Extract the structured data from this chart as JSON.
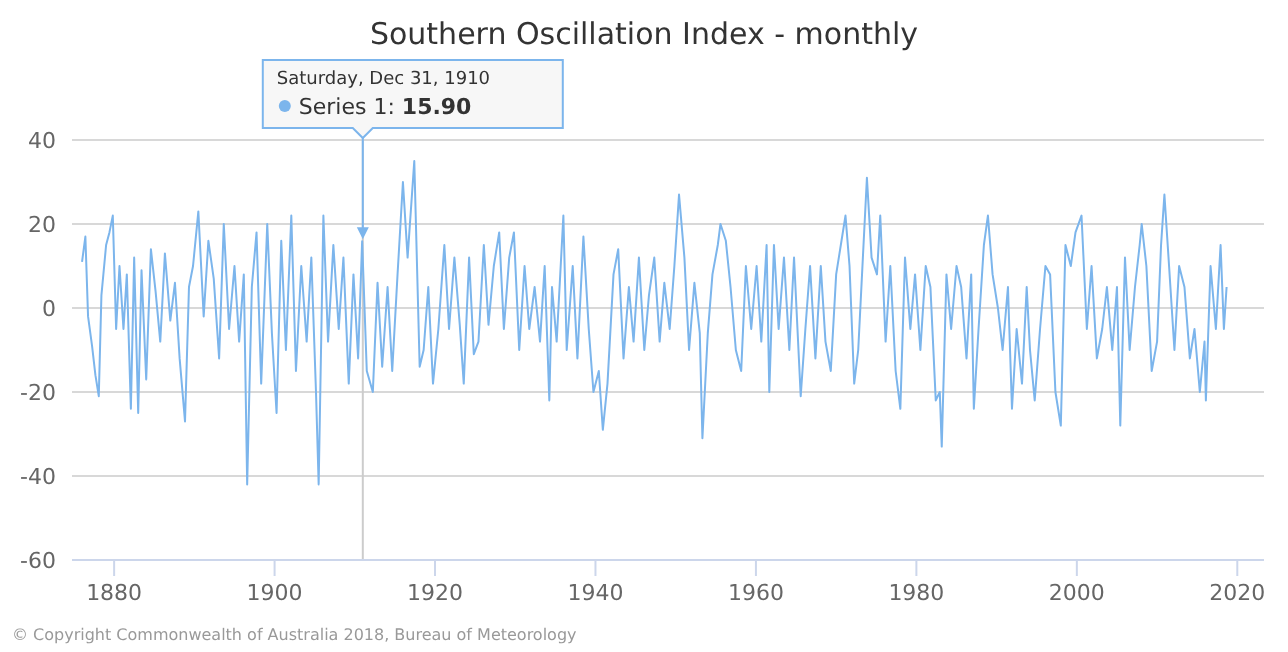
{
  "chart_data": {
    "type": "line",
    "title": "Southern Oscillation Index - monthly",
    "xlim": [
      "1874-10",
      "2023-05"
    ],
    "xticks": [
      {
        "value": "1880",
        "label": "1880"
      },
      {
        "value": "1900",
        "label": "1900"
      },
      {
        "value": "1920",
        "label": "1920"
      },
      {
        "value": "1940",
        "label": "1940"
      },
      {
        "value": "1960",
        "label": "1960"
      },
      {
        "value": "1980",
        "label": "1980"
      },
      {
        "value": "2000",
        "label": "2000"
      },
      {
        "value": "2020",
        "label": "2020"
      }
    ],
    "ylim": [
      -60,
      40
    ],
    "yticks": [
      -60,
      -40,
      -20,
      0,
      20,
      40
    ],
    "grid": "y",
    "marker": "none",
    "line_style": "solid",
    "x": [
      "1876-01",
      "1876-06",
      "1876-10",
      "1877-04",
      "1877-09",
      "1878-02",
      "1878-06",
      "1879-01",
      "1879-06",
      "1879-11",
      "1880-04",
      "1880-09",
      "1881-03",
      "1881-08",
      "1882-02",
      "1882-07",
      "1883-01",
      "1883-06",
      "1884-01",
      "1884-08",
      "1885-03",
      "1885-10",
      "1886-05",
      "1887-01",
      "1887-08",
      "1888-03",
      "1888-11",
      "1889-05",
      "1889-11",
      "1890-07",
      "1891-03",
      "1891-10",
      "1892-06",
      "1893-02",
      "1893-09",
      "1894-05",
      "1895-01",
      "1895-08",
      "1896-03",
      "1896-08",
      "1897-03",
      "1897-10",
      "1898-05",
      "1899-02",
      "1899-09",
      "1900-04",
      "1900-11",
      "1901-06",
      "1902-02",
      "1902-09",
      "1903-05",
      "1904-01",
      "1904-08",
      "1905-03",
      "1905-07",
      "1906-02",
      "1906-09",
      "1907-05",
      "1908-01",
      "1908-08",
      "1909-04",
      "1909-11",
      "1910-06",
      "1910-12",
      "1911-07",
      "1912-04",
      "1912-11",
      "1913-06",
      "1914-02",
      "1914-09",
      "1915-05",
      "1916-01",
      "1916-08",
      "1917-06",
      "1918-02",
      "1918-08",
      "1919-03",
      "1919-10",
      "1920-06",
      "1921-03",
      "1921-10",
      "1922-06",
      "1923-02",
      "1923-08",
      "1924-04",
      "1924-11",
      "1925-06",
      "1926-02",
      "1926-09",
      "1927-05",
      "1928-01",
      "1928-08",
      "1929-04",
      "1929-11",
      "1930-07",
      "1931-03",
      "1931-10",
      "1932-06",
      "1933-02",
      "1933-09",
      "1934-04",
      "1934-08",
      "1935-03",
      "1936-01",
      "1936-06",
      "1937-03",
      "1937-10",
      "1938-07",
      "1939-03",
      "1939-10",
      "1940-06",
      "1940-12",
      "1941-07",
      "1942-04",
      "1942-11",
      "1943-07",
      "1944-03",
      "1944-10",
      "1945-06",
      "1946-02",
      "1946-09",
      "1947-05",
      "1948-01",
      "1948-08",
      "1949-04",
      "1949-11",
      "1950-06",
      "1951-02",
      "1951-09",
      "1952-05",
      "1953-01",
      "1953-05",
      "1954-01",
      "1954-08",
      "1955-04",
      "1955-08",
      "1956-04",
      "1956-11",
      "1957-07",
      "1958-03",
      "1958-10",
      "1959-06",
      "1960-02",
      "1960-09",
      "1961-05",
      "1961-09",
      "1962-04",
      "1962-11",
      "1963-07",
      "1964-03",
      "1964-10",
      "1965-08",
      "1966-03",
      "1966-10",
      "1967-06",
      "1968-02",
      "1968-09",
      "1969-05",
      "1970-01",
      "1970-08",
      "1971-03",
      "1971-09",
      "1972-04",
      "1972-10",
      "1973-05",
      "1973-11",
      "1974-06",
      "1975-02",
      "1975-07",
      "1976-03",
      "1976-10",
      "1977-06",
      "1978-01",
      "1978-08",
      "1979-04",
      "1979-11",
      "1980-07",
      "1981-03",
      "1981-10",
      "1982-06",
      "1982-12",
      "1983-03",
      "1983-10",
      "1984-05",
      "1985-01",
      "1985-08",
      "1986-04",
      "1986-11",
      "1987-03",
      "1987-10",
      "1988-06",
      "1988-12",
      "1989-07",
      "1990-03",
      "1990-10",
      "1991-06",
      "1991-12",
      "1992-07",
      "1993-03",
      "1993-10",
      "1994-03",
      "1994-10",
      "1995-06",
      "1996-02",
      "1996-09",
      "1997-05",
      "1998-01",
      "1998-08",
      "1999-04",
      "1999-11",
      "2000-08",
      "2001-04",
      "2001-11",
      "2002-07",
      "2003-03",
      "2003-10",
      "2004-06",
      "2005-01",
      "2005-06",
      "2006-01",
      "2006-08",
      "2007-04",
      "2007-11",
      "2008-02",
      "2008-09",
      "2009-05",
      "2010-01",
      "2010-07",
      "2010-12",
      "2011-07",
      "2012-03",
      "2012-10",
      "2013-06",
      "2014-02",
      "2014-09",
      "2015-05",
      "2015-12",
      "2016-02",
      "2016-09",
      "2017-05",
      "2017-12",
      "2018-05",
      "2018-09"
    ],
    "annotations": [
      "Saturday, Dec 31, 1910",
      {
        "text": "Series 1: 15.90",
        "x": "1910-12-31",
        "y": 15.9
      },
      "© Copyright Commonwealth of Australia 2018, Bureau of Meteorology"
    ],
    "ref_lines": [
      {
        "axis": "x",
        "value": "1910-12-31",
        "label": null,
        "color": "#cccccc"
      }
    ],
    "series": [
      {
        "color": "#7cb5ec",
        "values": [
          11,
          17,
          -2,
          -9,
          -16,
          -21,
          3,
          15,
          18,
          22,
          -5,
          10,
          -5,
          8,
          -24,
          12,
          -25,
          9,
          -17,
          14,
          4,
          -8,
          13,
          -3,
          6,
          -12,
          -27,
          5,
          10,
          23,
          -2,
          16,
          7,
          -12,
          20,
          -5,
          10,
          -8,
          8,
          -42,
          5,
          18,
          -18,
          20,
          -6,
          -25,
          16,
          -10,
          22,
          -15,
          10,
          -8,
          12,
          -20,
          -42,
          22,
          -8,
          15,
          -5,
          12,
          -18,
          8,
          -12,
          15.9,
          -15,
          -20,
          6,
          -14,
          5,
          -15,
          8,
          30,
          12,
          35,
          -14,
          -10,
          5,
          -18,
          -5,
          15,
          -5,
          12,
          -4,
          -18,
          12,
          -11,
          -8,
          15,
          -4,
          10,
          18,
          -5,
          12,
          18,
          -10,
          10,
          -5,
          5,
          -8,
          10,
          -22,
          5,
          -8,
          22,
          -10,
          10,
          -12,
          17,
          -5,
          -20,
          -15,
          -29,
          -18,
          8,
          14,
          -12,
          5,
          -8,
          12,
          -10,
          3,
          12,
          -8,
          6,
          -5,
          10,
          27,
          12,
          -10,
          6,
          -6,
          -31,
          -6,
          8,
          15,
          20,
          16,
          5,
          -10,
          -15,
          10,
          -5,
          10,
          -8,
          15,
          -20,
          15,
          -5,
          12,
          -10,
          12,
          -21,
          -5,
          10,
          -12,
          10,
          -8,
          -15,
          8,
          15,
          22,
          10,
          -18,
          -10,
          12,
          31,
          12,
          8,
          22,
          -8,
          10,
          -15,
          -24,
          12,
          -5,
          8,
          -10,
          10,
          5,
          -22,
          -20,
          -33,
          8,
          -5,
          10,
          5,
          -12,
          8,
          -24,
          -5,
          15,
          22,
          8,
          0,
          -10,
          5,
          -24,
          -5,
          -18,
          5,
          -10,
          -22,
          -5,
          10,
          8,
          -20,
          -28,
          15,
          10,
          18,
          22,
          -5,
          10,
          -12,
          -5,
          5,
          -10,
          5,
          -28,
          12,
          -10,
          5,
          15,
          20,
          10,
          -15,
          -8,
          15,
          27,
          10,
          -10,
          10,
          5,
          -12,
          -5,
          -20,
          -8,
          -22,
          10,
          -5,
          15,
          -5,
          5
        ]
      }
    ]
  }
}
